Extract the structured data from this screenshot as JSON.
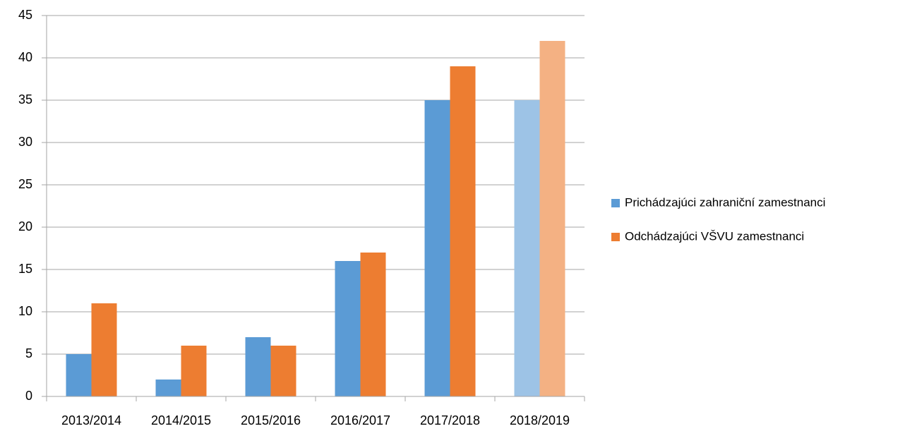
{
  "chart_data": {
    "type": "bar",
    "categories": [
      "2013/2014",
      "2014/2015",
      "2015/2016",
      "2016/2017",
      "2017/2018",
      "2018/2019"
    ],
    "series": [
      {
        "name": "Prichádzajúci zahraniční zamestnanci",
        "color": "#5b9bd5",
        "colors": [
          "#5b9bd5",
          "#5b9bd5",
          "#5b9bd5",
          "#5b9bd5",
          "#5b9bd5",
          "#9dc3e6"
        ],
        "values": [
          5,
          2,
          7,
          16,
          35,
          35
        ]
      },
      {
        "name": "Odchádzajúci VŠVU zamestnanci",
        "color": "#ed7d31",
        "colors": [
          "#ed7d31",
          "#ed7d31",
          "#ed7d31",
          "#ed7d31",
          "#ed7d31",
          "#f4b183"
        ],
        "values": [
          11,
          6,
          6,
          17,
          39,
          42
        ]
      }
    ],
    "ylim": [
      0,
      45
    ],
    "yticks": [
      0,
      5,
      10,
      15,
      20,
      25,
      30,
      35,
      40,
      45
    ],
    "grid": true,
    "legend": "right"
  }
}
